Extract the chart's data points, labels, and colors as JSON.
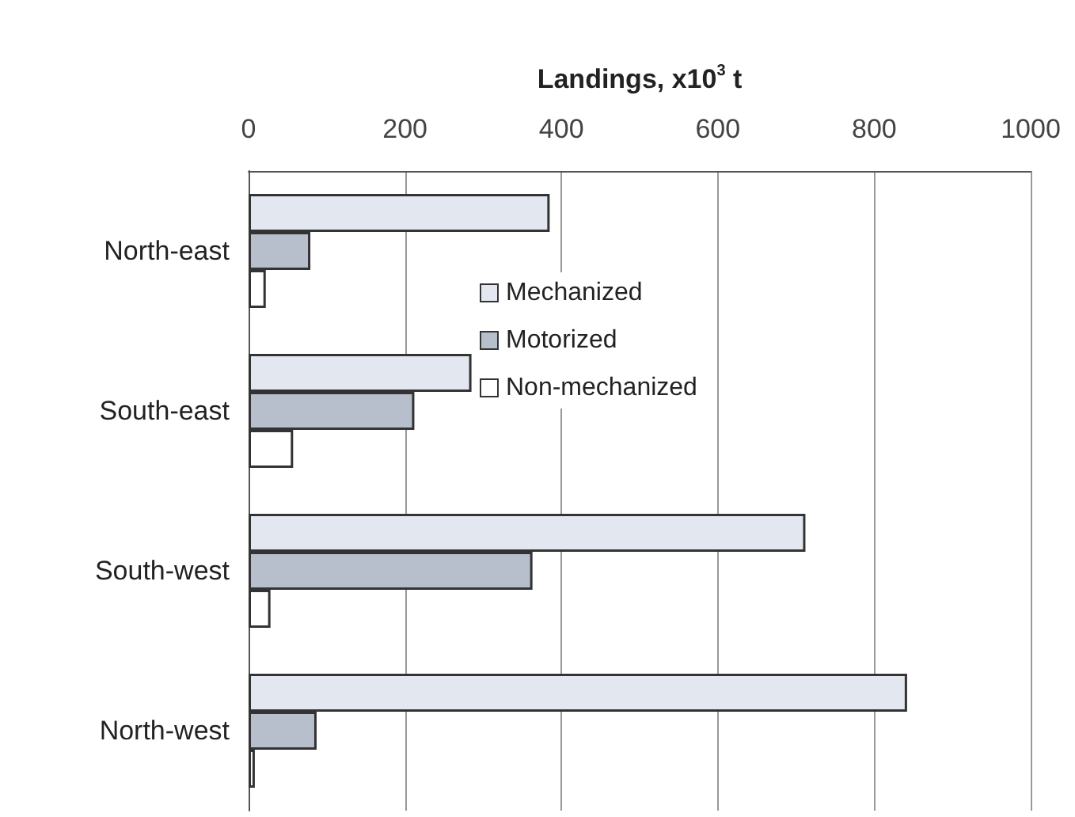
{
  "chart_data": {
    "type": "bar",
    "orientation": "horizontal",
    "xlabel": "Landings, x10$^{3}$ t",
    "categories": [
      "North-east",
      "South-east",
      "South-west",
      "North-west"
    ],
    "series": [
      {
        "name": "Mechanized",
        "color": "#e3e8f0",
        "values": [
          385,
          285,
          712,
          842
        ]
      },
      {
        "name": "Motorized",
        "color": "#b7bfcc",
        "values": [
          79,
          212,
          363,
          87
        ]
      },
      {
        "name": "Non-mechanized",
        "color": "#ffffff",
        "values": [
          22,
          57,
          28,
          8
        ]
      }
    ],
    "xlim": [
      0,
      1000
    ],
    "xticks": [
      0,
      200,
      400,
      600,
      800,
      1000
    ],
    "grid": "x",
    "legend": "center"
  }
}
